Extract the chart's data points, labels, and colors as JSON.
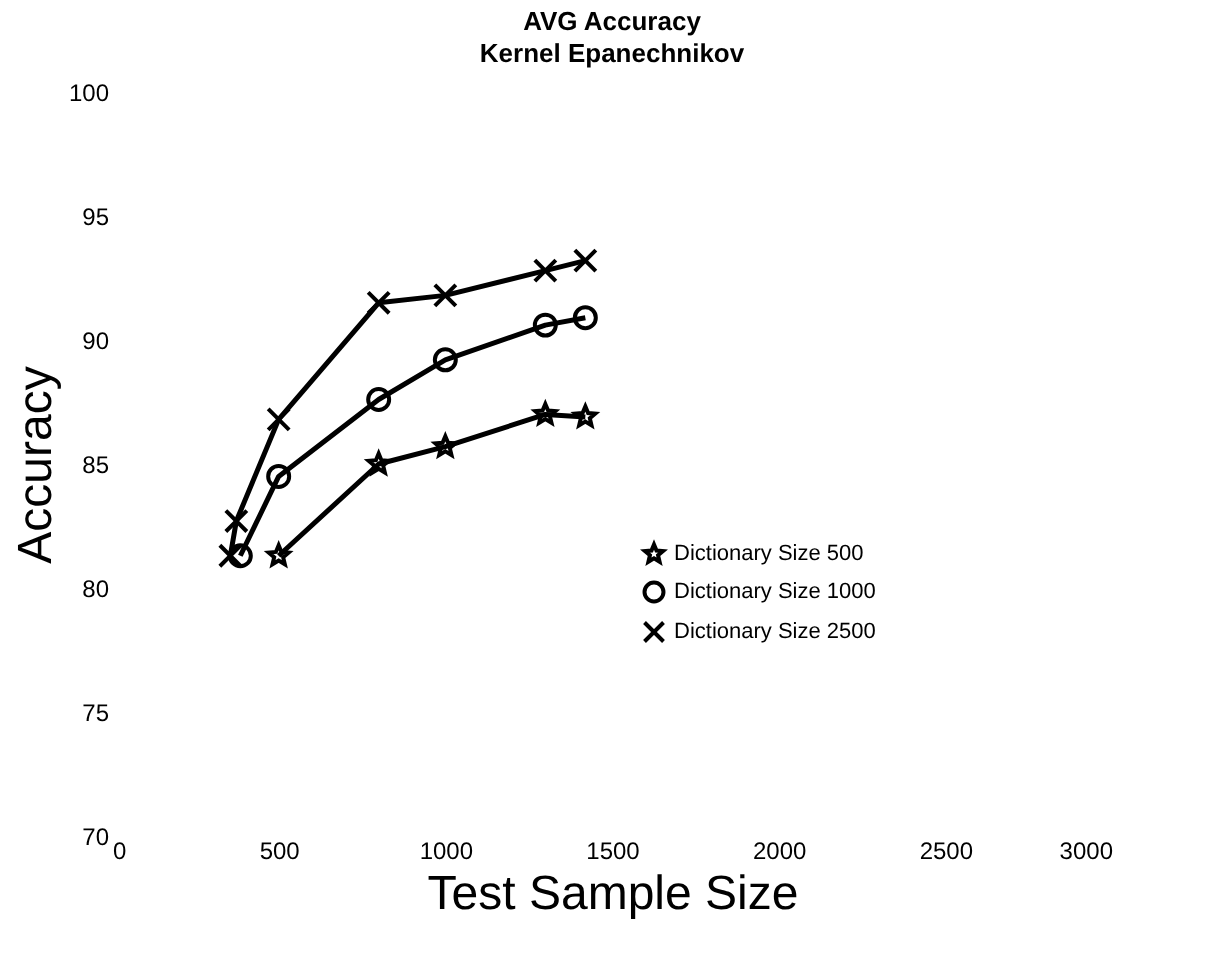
{
  "chart_data": {
    "type": "line",
    "title": "AVG Accuracy",
    "subtitle": "Kernel Epanechnikov",
    "xlabel": "Test Sample Size",
    "ylabel": "Accuracy",
    "xlim": [
      0,
      3000
    ],
    "xticks": [
      0,
      500,
      1000,
      1500,
      2000,
      2500,
      3000
    ],
    "ylim": [
      70,
      100
    ],
    "yticks": [
      70,
      75,
      80,
      85,
      90,
      95,
      100
    ],
    "grid": false,
    "legend": "right",
    "line_style": "solid",
    "series": [
      {
        "name": "Dictionary Size 500",
        "color": "#000000",
        "marker": "star",
        "x": [
          500,
          800,
          1000,
          1300,
          1420
        ],
        "values": [
          81.3,
          85.0,
          85.7,
          87.0,
          86.9
        ]
      },
      {
        "name": "Dictionary Size 1000",
        "color": "#000000",
        "marker": "circle",
        "x": [
          385,
          500,
          800,
          1000,
          1300,
          1420
        ],
        "values": [
          81.3,
          84.5,
          87.6,
          89.2,
          90.6,
          90.9
        ]
      },
      {
        "name": "Dictionary Size 2500",
        "color": "#000000",
        "marker": "cross",
        "x": [
          355,
          373,
          500,
          800,
          1000,
          1300,
          1420
        ],
        "values": [
          81.3,
          82.7,
          86.8,
          91.5,
          91.8,
          92.8,
          93.2
        ]
      }
    ]
  }
}
